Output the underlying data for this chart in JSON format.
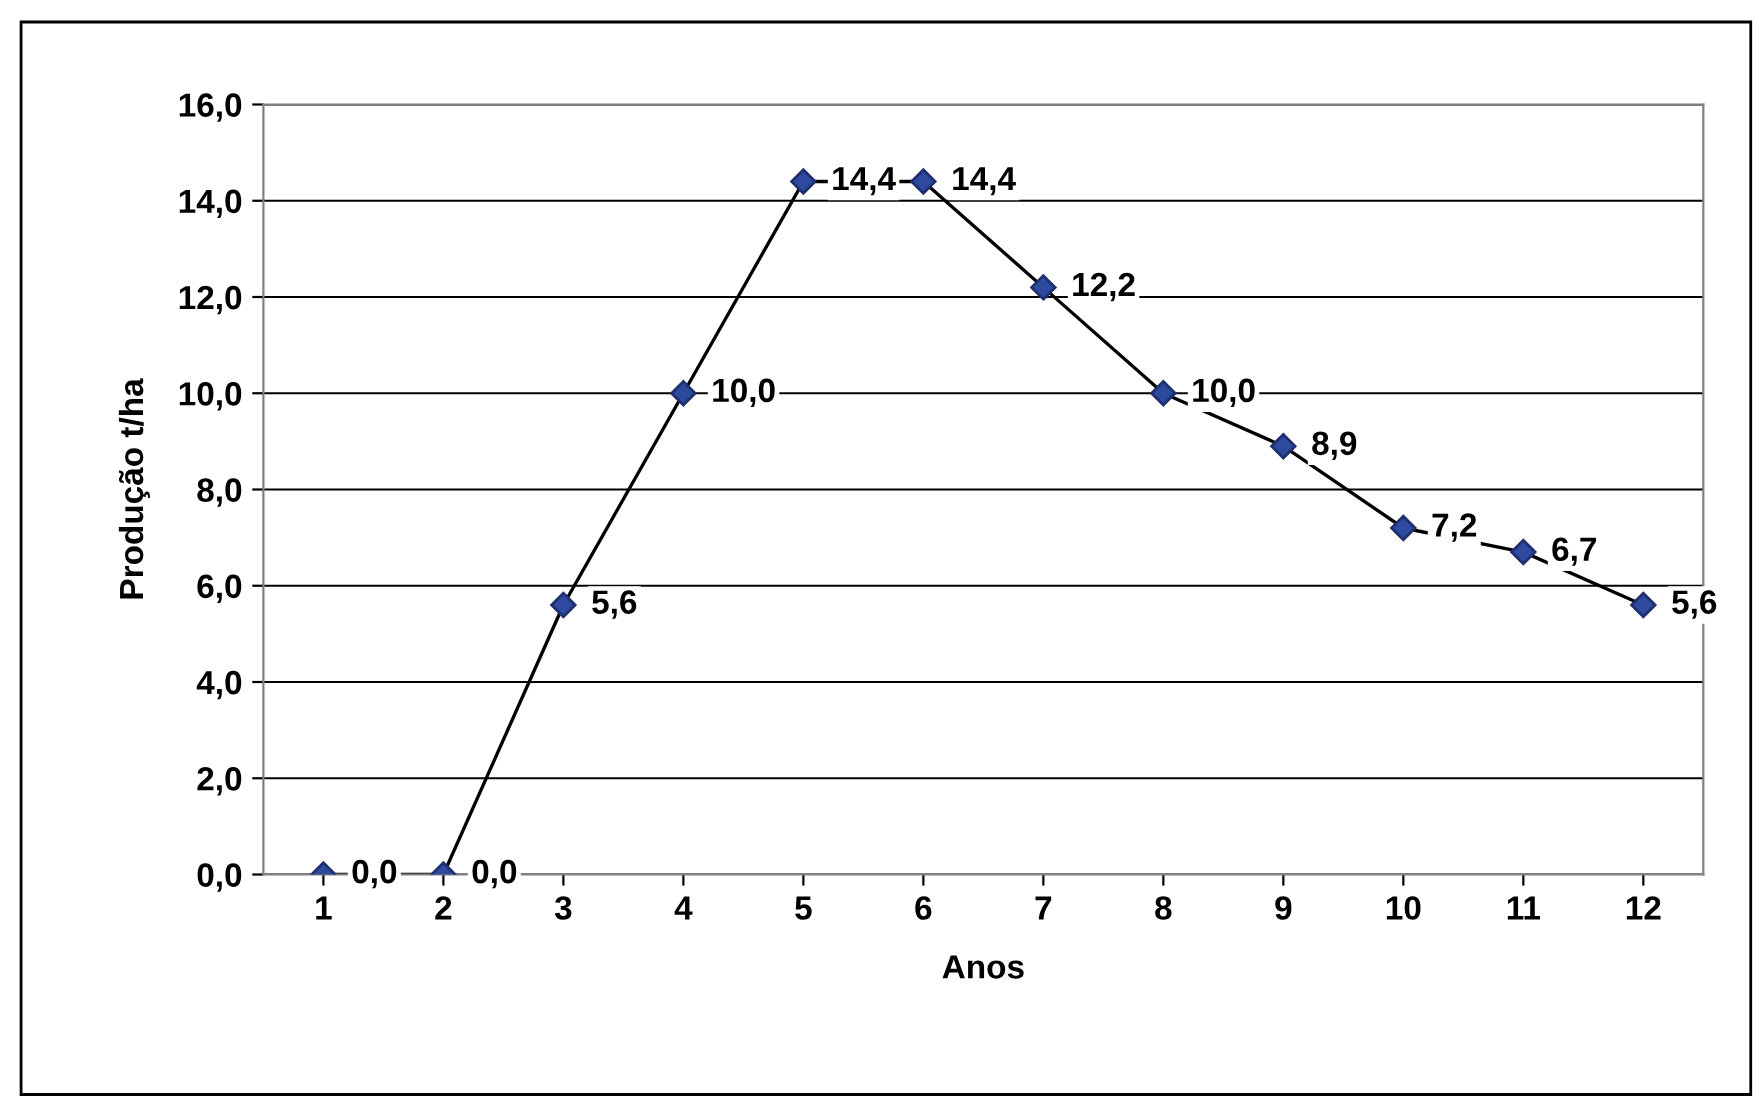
{
  "chart_data": {
    "type": "line",
    "xlabel": "Anos",
    "ylabel": "Produção t/ha",
    "categories": [
      "1",
      "2",
      "3",
      "4",
      "5",
      "6",
      "7",
      "8",
      "9",
      "10",
      "11",
      "12"
    ],
    "series": [
      {
        "color": "#2e4a9e",
        "values": [
          0.0,
          0.0,
          5.6,
          10.0,
          14.4,
          14.4,
          12.2,
          10.0,
          8.9,
          7.2,
          6.7,
          5.6
        ],
        "value_labels": [
          "0,0",
          "0,0",
          "5,6",
          "10,0",
          "14,4",
          "14,4",
          "12,2",
          "10,0",
          "8,9",
          "7,2",
          "6,7",
          "5,6"
        ]
      }
    ],
    "ylim": [
      0,
      16
    ],
    "yticks": [
      {
        "value": 0,
        "label": "0,0"
      },
      {
        "value": 2,
        "label": "2,0"
      },
      {
        "value": 4,
        "label": "4,0"
      },
      {
        "value": 6,
        "label": "6,0"
      },
      {
        "value": 8,
        "label": "8,0"
      },
      {
        "value": 10,
        "label": "10,0"
      },
      {
        "value": 12,
        "label": "12,0"
      },
      {
        "value": 14,
        "label": "14,0"
      },
      {
        "value": 16,
        "label": "16,0"
      }
    ],
    "grid": "y",
    "marker": "diamond",
    "line_style": "solid"
  }
}
